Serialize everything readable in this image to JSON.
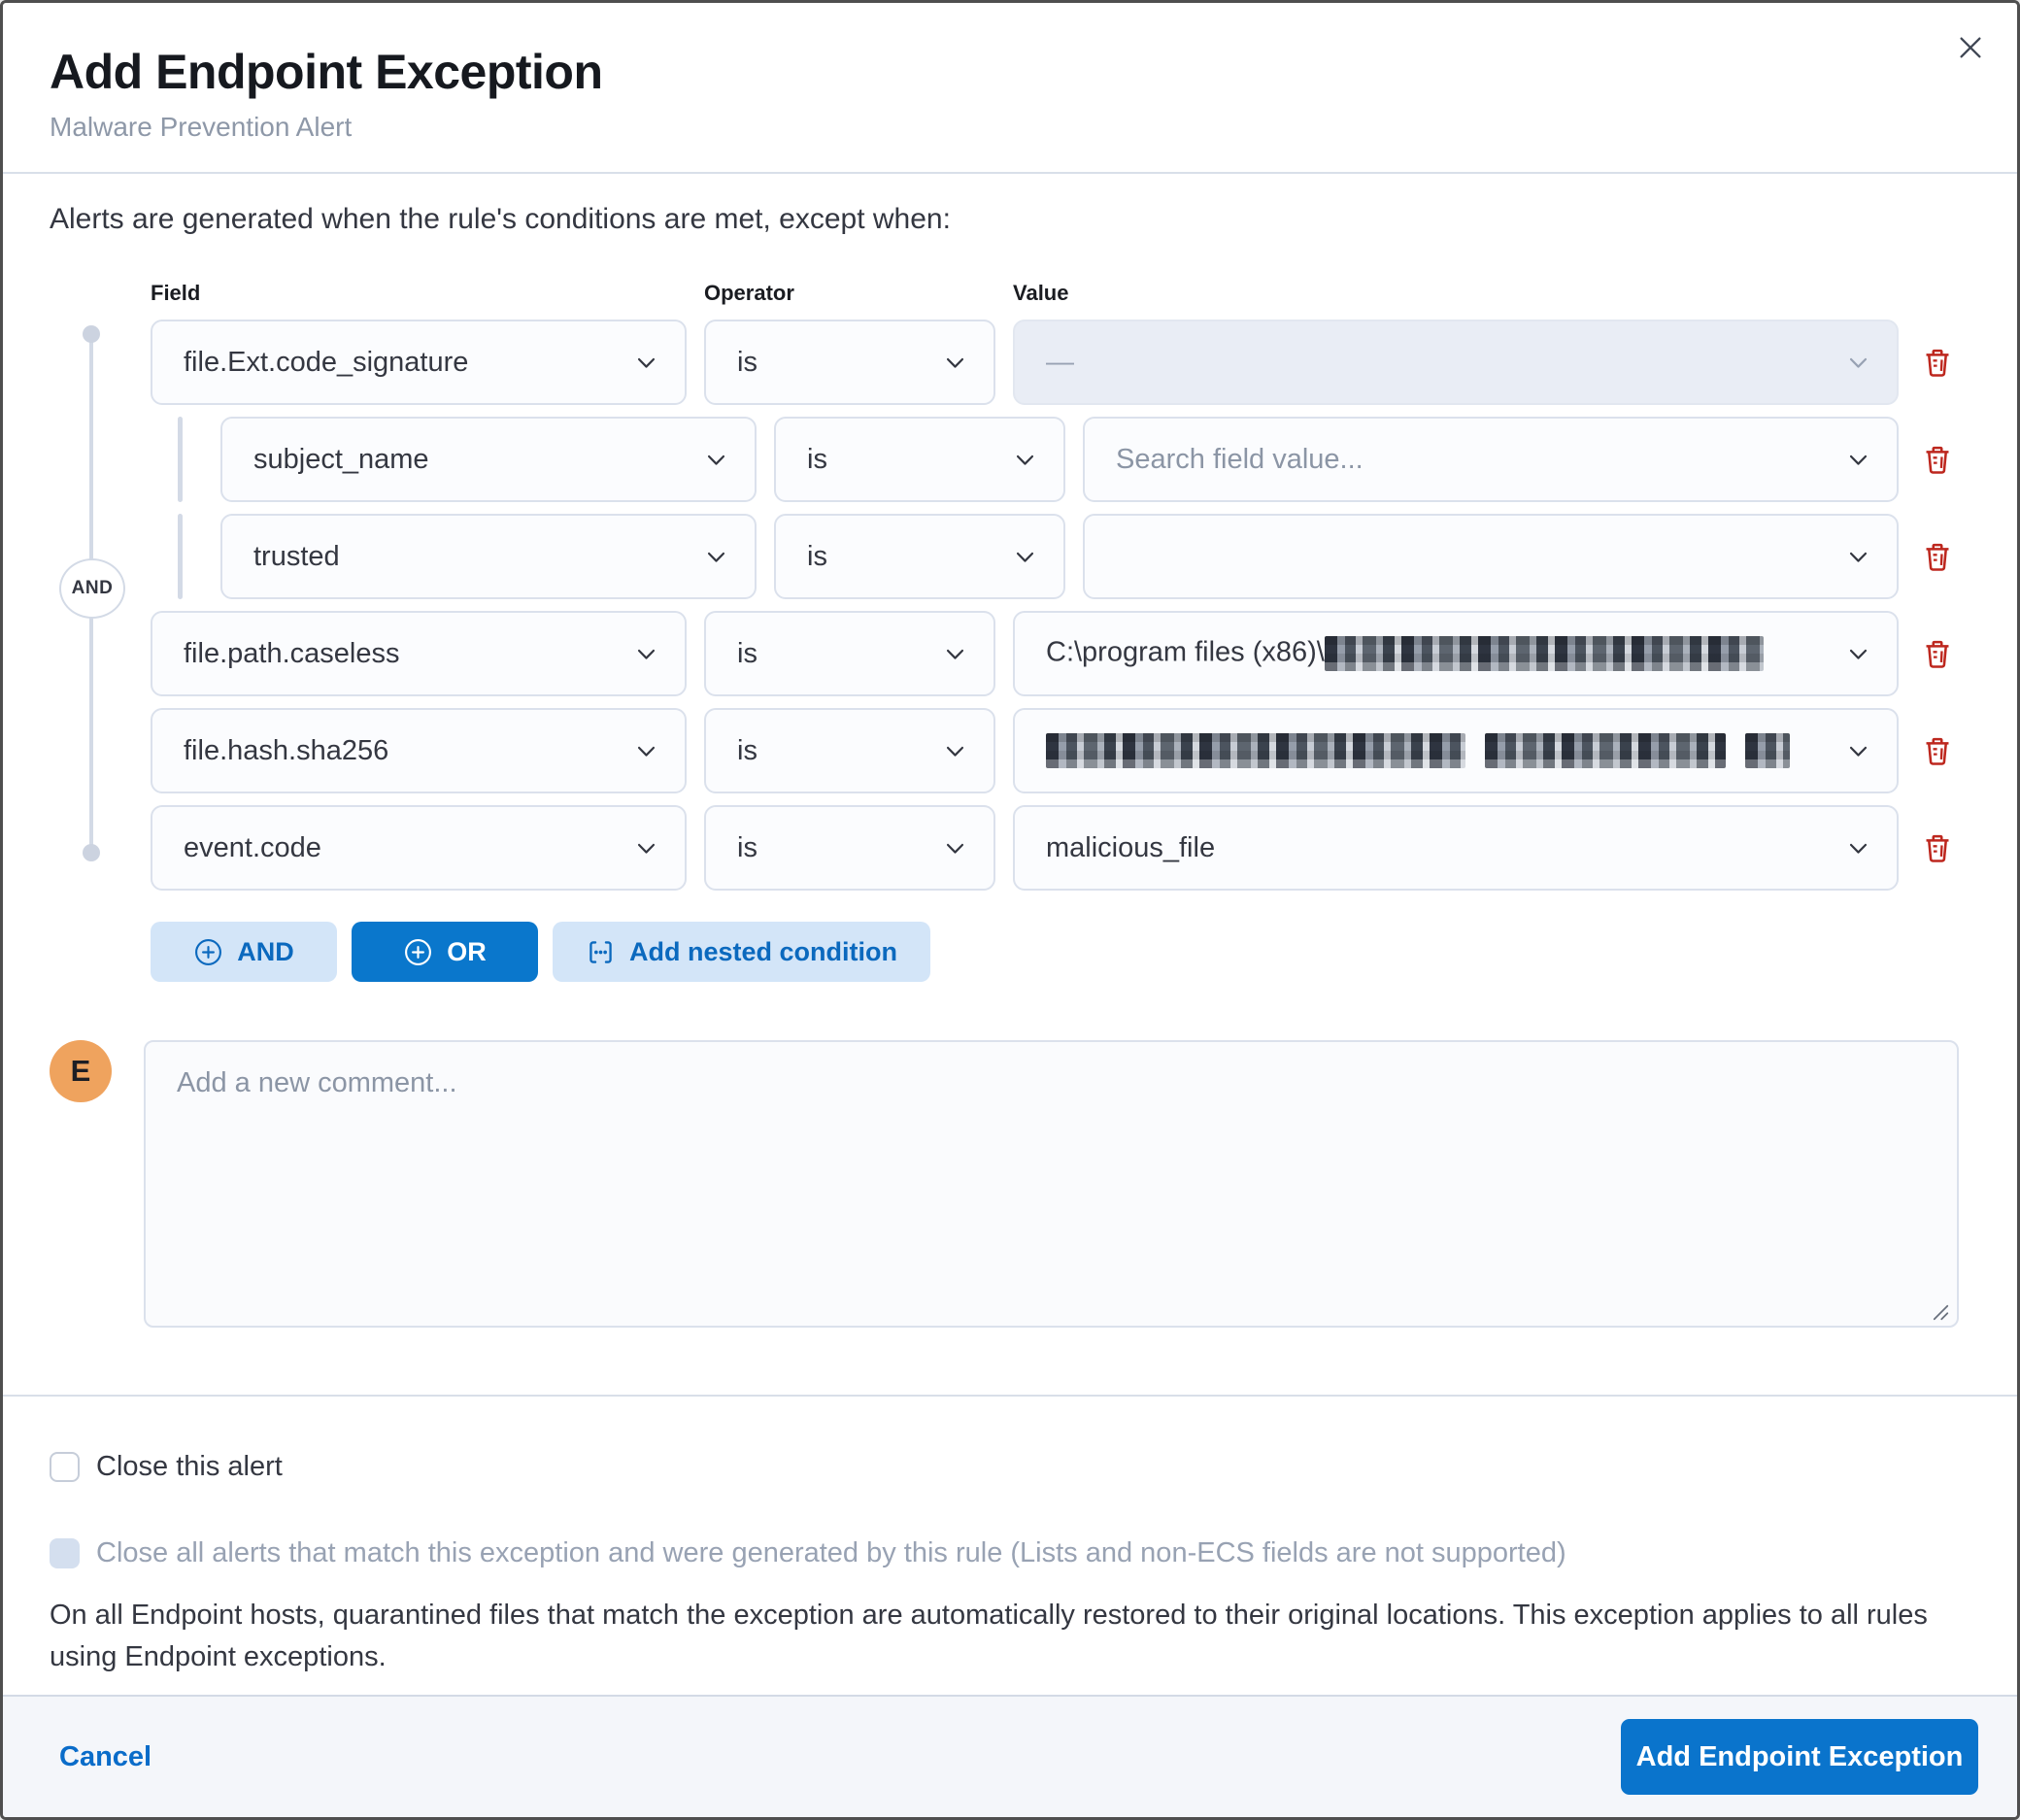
{
  "modal": {
    "title": "Add Endpoint Exception",
    "subtitle": "Malware Prevention Alert",
    "instruction": "Alerts are generated when the rule's conditions are met, except when:",
    "columns": {
      "field": "Field",
      "operator": "Operator",
      "value": "Value"
    },
    "connector_label": "AND",
    "conditions": [
      {
        "field": "file.Ext.code_signature",
        "operator": "is",
        "nested": false,
        "value": {
          "type": "disabled",
          "text": "—"
        }
      },
      {
        "field": "subject_name",
        "operator": "is",
        "nested": true,
        "value": {
          "type": "placeholder",
          "text": "Search field value..."
        }
      },
      {
        "field": "trusted",
        "operator": "is",
        "nested": true,
        "value": {
          "type": "empty",
          "text": ""
        }
      },
      {
        "field": "file.path.caseless",
        "operator": "is",
        "nested": false,
        "value": {
          "type": "redacted",
          "prefix": "C:\\program files (x86)\\"
        }
      },
      {
        "field": "file.hash.sha256",
        "operator": "is",
        "nested": false,
        "value": {
          "type": "redacted",
          "prefix": ""
        }
      },
      {
        "field": "event.code",
        "operator": "is",
        "nested": false,
        "value": {
          "type": "text",
          "text": "malicious_file"
        }
      }
    ],
    "builder_buttons": {
      "and": "AND",
      "or": "OR",
      "nested": "Add nested condition"
    },
    "comment": {
      "avatar_initial": "E",
      "placeholder": "Add a new comment..."
    },
    "options": {
      "close_alert_label": "Close this alert",
      "close_all_label": "Close all alerts that match this exception and were generated by this rule (Lists and non-ECS fields are not supported)"
    },
    "note": "On all Endpoint hosts, quarantined files that match the exception are automatically restored to their original locations. This exception applies to all rules using Endpoint exceptions.",
    "footer": {
      "cancel_label": "Cancel",
      "submit_label": "Add Endpoint Exception"
    },
    "colors": {
      "primary": "#0a74cc",
      "danger": "#bd271e",
      "avatar": "#efa35e"
    }
  }
}
